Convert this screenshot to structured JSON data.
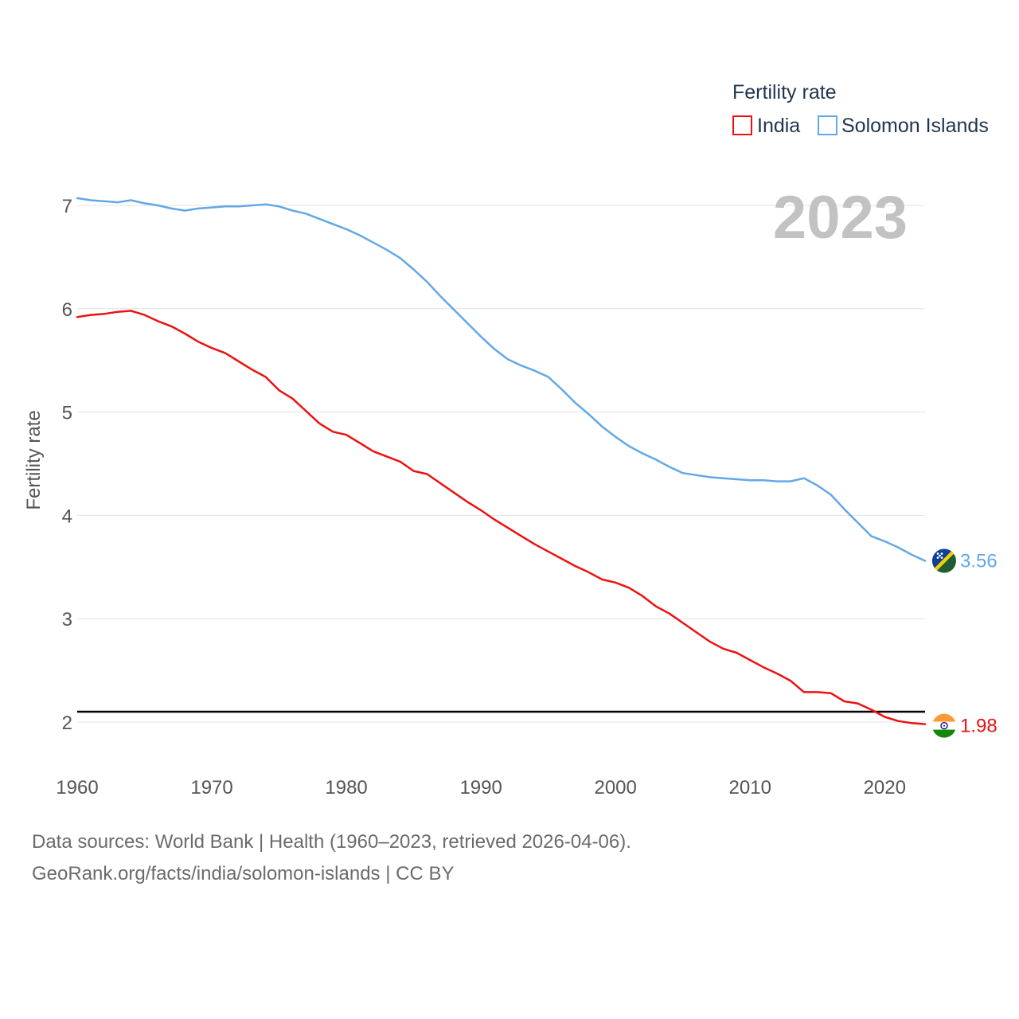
{
  "footer": {
    "line1": "Data sources: World Bank | Health (1960–2023, retrieved 2026-04-06).",
    "line2": "GeoRank.org/facts/india/solomon-islands | CC BY"
  },
  "chart_data": {
    "type": "line",
    "title": "",
    "xlabel": "",
    "ylabel": "Fertility rate",
    "legend_title": "Fertility rate",
    "legend_position": "top-right",
    "year_label": "2023",
    "xlim": [
      1960,
      2023
    ],
    "ylim": [
      1.6,
      7.2
    ],
    "x_ticks": [
      1960,
      1970,
      1980,
      1990,
      2000,
      2010,
      2020
    ],
    "y_ticks": [
      2,
      3,
      4,
      5,
      6,
      7
    ],
    "reference_line": 2.1,
    "x": [
      1960,
      1961,
      1962,
      1963,
      1964,
      1965,
      1966,
      1967,
      1968,
      1969,
      1970,
      1971,
      1972,
      1973,
      1974,
      1975,
      1976,
      1977,
      1978,
      1979,
      1980,
      1981,
      1982,
      1983,
      1984,
      1985,
      1986,
      1987,
      1988,
      1989,
      1990,
      1991,
      1992,
      1993,
      1994,
      1995,
      1996,
      1997,
      1998,
      1999,
      2000,
      2001,
      2002,
      2003,
      2004,
      2005,
      2006,
      2007,
      2008,
      2009,
      2010,
      2011,
      2012,
      2013,
      2014,
      2015,
      2016,
      2017,
      2018,
      2019,
      2020,
      2021,
      2022,
      2023
    ],
    "series": [
      {
        "name": "India",
        "color": "#ee1111",
        "end_label": "1.98",
        "values": [
          5.92,
          5.94,
          5.95,
          5.97,
          5.98,
          5.94,
          5.88,
          5.83,
          5.76,
          5.68,
          5.62,
          5.57,
          5.49,
          5.41,
          5.34,
          5.21,
          5.13,
          5.01,
          4.89,
          4.81,
          4.78,
          4.7,
          4.62,
          4.57,
          4.52,
          4.43,
          4.4,
          4.31,
          4.22,
          4.13,
          4.05,
          3.96,
          3.88,
          3.8,
          3.72,
          3.65,
          3.58,
          3.51,
          3.45,
          3.38,
          3.35,
          3.3,
          3.22,
          3.12,
          3.05,
          2.96,
          2.87,
          2.78,
          2.71,
          2.67,
          2.6,
          2.53,
          2.47,
          2.4,
          2.29,
          2.29,
          2.28,
          2.2,
          2.18,
          2.12,
          2.05,
          2.01,
          1.99,
          1.98
        ]
      },
      {
        "name": "Solomon Islands",
        "color": "#62a8e6",
        "end_label": "3.56",
        "values": [
          7.07,
          7.05,
          7.04,
          7.03,
          7.05,
          7.02,
          7.0,
          6.97,
          6.95,
          6.97,
          6.98,
          6.99,
          6.99,
          7.0,
          7.01,
          6.99,
          6.95,
          6.92,
          6.87,
          6.82,
          6.77,
          6.71,
          6.64,
          6.57,
          6.49,
          6.38,
          6.26,
          6.12,
          5.99,
          5.86,
          5.73,
          5.61,
          5.51,
          5.45,
          5.4,
          5.34,
          5.22,
          5.09,
          4.98,
          4.86,
          4.76,
          4.67,
          4.6,
          4.54,
          4.47,
          4.41,
          4.39,
          4.37,
          4.36,
          4.35,
          4.34,
          4.34,
          4.33,
          4.33,
          4.36,
          4.29,
          4.2,
          4.06,
          3.93,
          3.8,
          3.75,
          3.69,
          3.62,
          3.56
        ]
      }
    ]
  }
}
